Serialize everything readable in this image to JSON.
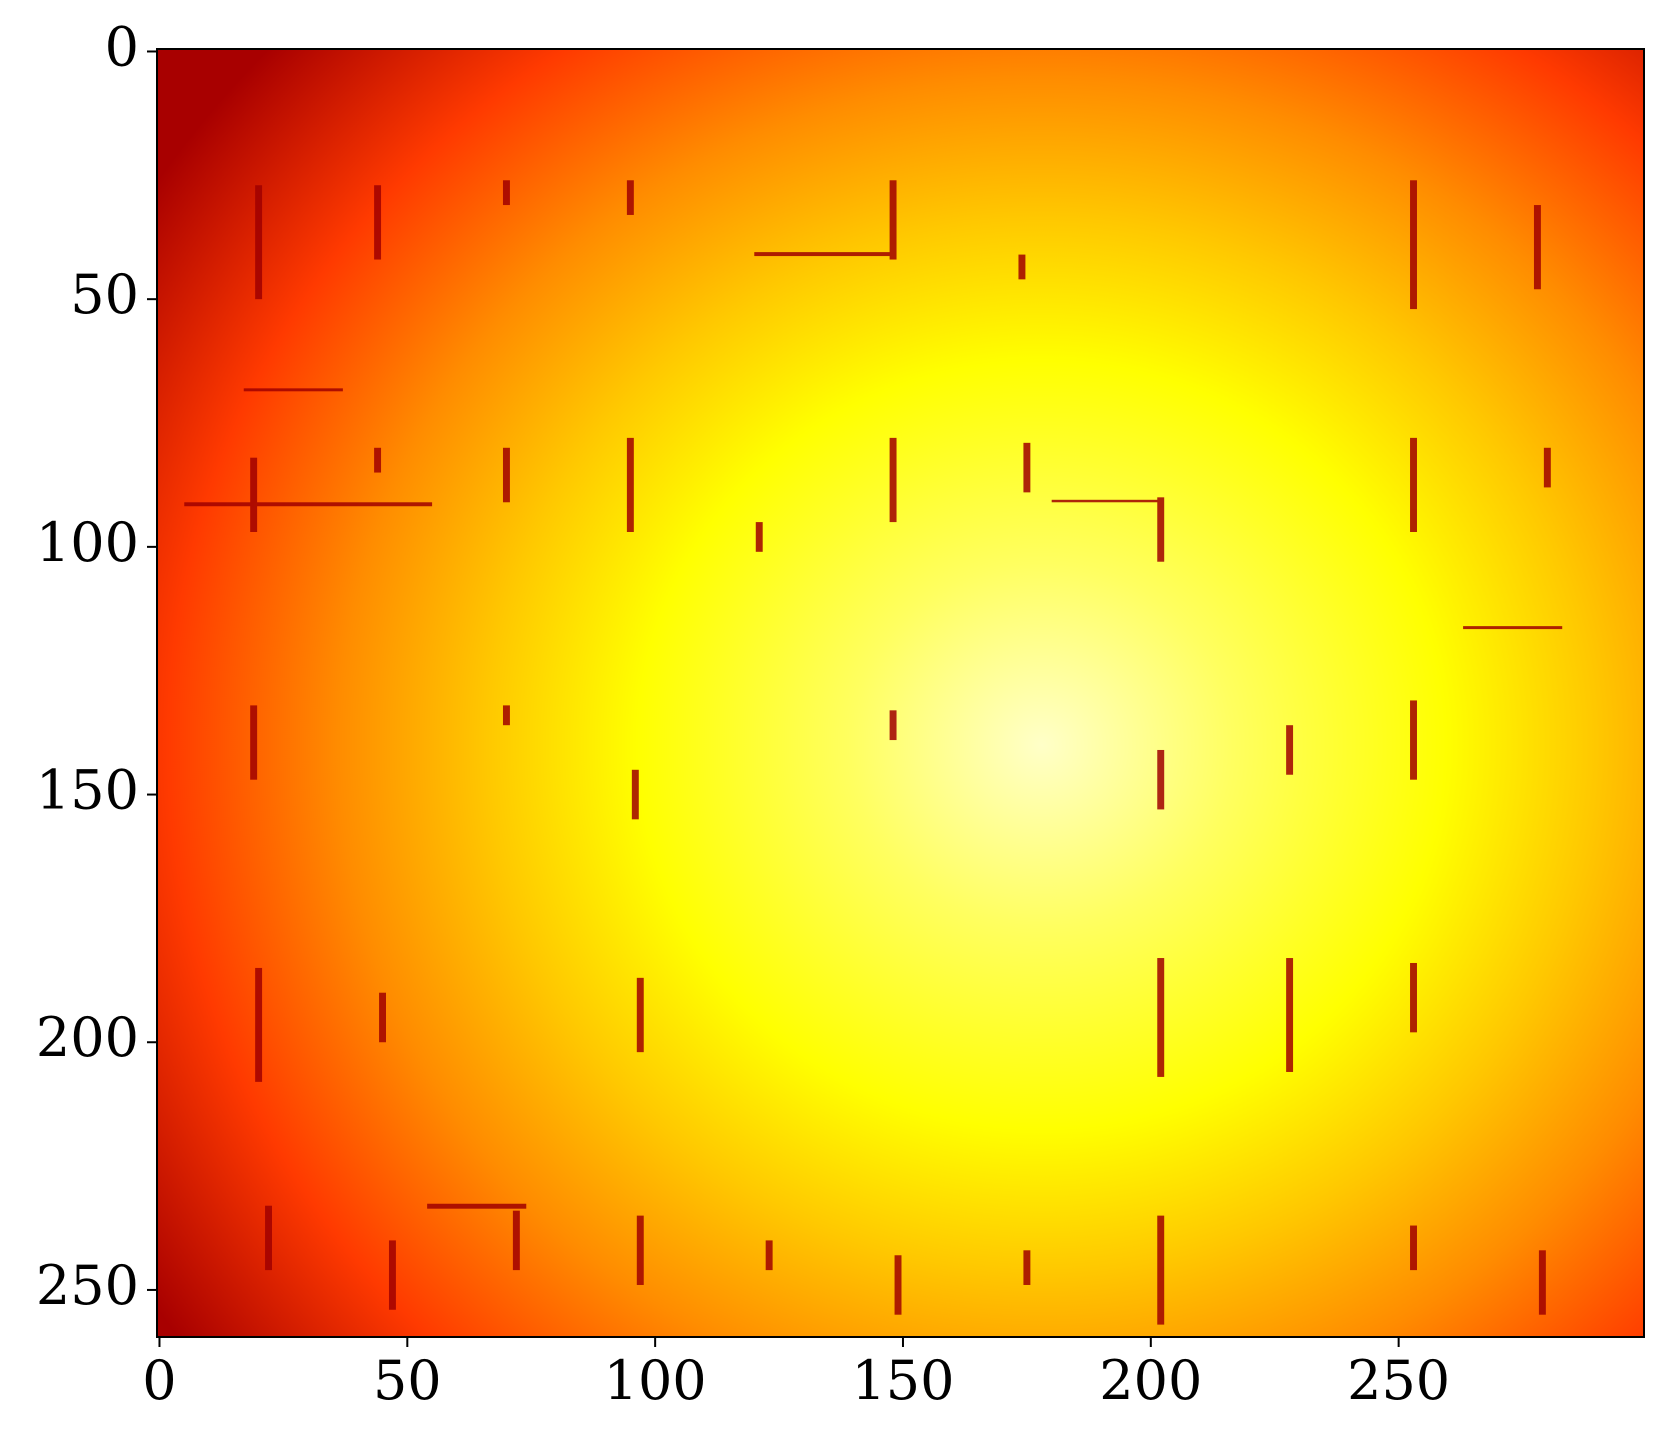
{
  "chart_data": {
    "type": "image",
    "colormap": "hot",
    "xlim": [
      -0.5,
      299.5
    ],
    "ylim": [
      259.5,
      -0.5
    ],
    "xticks": [
      0,
      50,
      100,
      150,
      200,
      250
    ],
    "yticks": [
      0,
      50,
      100,
      150,
      200,
      250
    ]
  }
}
